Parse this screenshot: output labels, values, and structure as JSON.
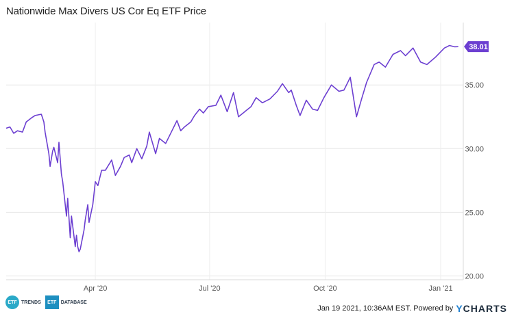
{
  "chart_data": {
    "type": "line",
    "title": "Nationwide Max Divers US Cor Eq ETF Price",
    "x_tick_labels": [
      "Apr '20",
      "Jul '20",
      "Oct '20",
      "Jan '21"
    ],
    "y_ticks": [
      20.0,
      25.0,
      30.0,
      35.0
    ],
    "y_tick_labels": [
      "20.00",
      "25.00",
      "30.00",
      "35.00"
    ],
    "ylim": [
      19.7,
      39.9
    ],
    "last_value_label": "38.01",
    "series_color": "#6c3fd1",
    "grid": true,
    "x_dates": [
      "2020-01-21",
      "2020-01-24",
      "2020-01-27",
      "2020-01-30",
      "2020-02-03",
      "2020-02-06",
      "2020-02-10",
      "2020-02-13",
      "2020-02-18",
      "2020-02-20",
      "2020-02-21",
      "2020-02-24",
      "2020-02-25",
      "2020-02-27",
      "2020-02-28",
      "2020-03-02",
      "2020-03-03",
      "2020-03-05",
      "2020-03-06",
      "2020-03-09",
      "2020-03-10",
      "2020-03-12",
      "2020-03-13",
      "2020-03-16",
      "2020-03-17",
      "2020-03-18",
      "2020-03-19",
      "2020-03-20",
      "2020-03-23",
      "2020-03-24",
      "2020-03-26",
      "2020-03-27",
      "2020-03-30",
      "2020-04-01",
      "2020-04-03",
      "2020-04-06",
      "2020-04-09",
      "2020-04-14",
      "2020-04-17",
      "2020-04-21",
      "2020-04-24",
      "2020-04-28",
      "2020-04-30",
      "2020-05-04",
      "2020-05-08",
      "2020-05-12",
      "2020-05-14",
      "2020-05-19",
      "2020-05-22",
      "2020-05-27",
      "2020-06-01",
      "2020-06-05",
      "2020-06-08",
      "2020-06-11",
      "2020-06-16",
      "2020-06-19",
      "2020-06-23",
      "2020-06-26",
      "2020-06-30",
      "2020-07-06",
      "2020-07-10",
      "2020-07-15",
      "2020-07-20",
      "2020-07-24",
      "2020-07-29",
      "2020-08-03",
      "2020-08-07",
      "2020-08-12",
      "2020-08-18",
      "2020-08-24",
      "2020-08-28",
      "2020-09-02",
      "2020-09-04",
      "2020-09-08",
      "2020-09-11",
      "2020-09-16",
      "2020-09-21",
      "2020-09-25",
      "2020-09-30",
      "2020-10-06",
      "2020-10-12",
      "2020-10-16",
      "2020-10-21",
      "2020-10-26",
      "2020-10-30",
      "2020-11-03",
      "2020-11-09",
      "2020-11-13",
      "2020-11-18",
      "2020-11-24",
      "2020-11-30",
      "2020-12-04",
      "2020-12-10",
      "2020-12-16",
      "2020-12-21",
      "2020-12-28",
      "2021-01-04",
      "2021-01-06",
      "2021-01-08",
      "2021-01-12",
      "2021-01-15"
    ],
    "y_values": [
      31.6,
      31.7,
      31.2,
      31.4,
      31.3,
      32.1,
      32.4,
      32.6,
      32.7,
      32.1,
      31.3,
      29.6,
      28.6,
      29.8,
      30.1,
      28.9,
      30.5,
      28.0,
      27.4,
      24.7,
      26.1,
      23.0,
      24.7,
      22.3,
      23.2,
      22.3,
      21.9,
      22.1,
      23.6,
      24.4,
      25.6,
      24.2,
      25.6,
      27.4,
      27.1,
      28.3,
      28.3,
      29.1,
      27.9,
      28.6,
      29.3,
      29.5,
      28.9,
      30.0,
      29.2,
      30.2,
      31.3,
      29.6,
      30.8,
      30.4,
      31.4,
      32.2,
      31.4,
      31.7,
      32.1,
      32.6,
      33.1,
      32.8,
      33.3,
      33.4,
      34.2,
      32.9,
      34.4,
      32.5,
      32.9,
      33.3,
      34.0,
      33.6,
      33.9,
      34.5,
      35.1,
      34.4,
      34.6,
      33.4,
      32.6,
      33.8,
      33.1,
      33.0,
      34.0,
      35.0,
      34.5,
      34.6,
      35.6,
      32.5,
      33.9,
      35.2,
      36.6,
      36.8,
      36.4,
      37.4,
      37.7,
      37.3,
      37.9,
      36.8,
      36.6,
      37.2,
      37.9,
      38.0,
      38.1,
      38.0,
      38.01
    ]
  },
  "footer": {
    "logo1_text": "ETF",
    "logo1_label": "TRENDS",
    "logo2_text": "ETF",
    "logo2_label": "DATABASE",
    "timestamp": "Jan 19 2021, 10:36AM EST. Powered by",
    "brand_y": "Y",
    "brand_rest": "CHARTS"
  }
}
